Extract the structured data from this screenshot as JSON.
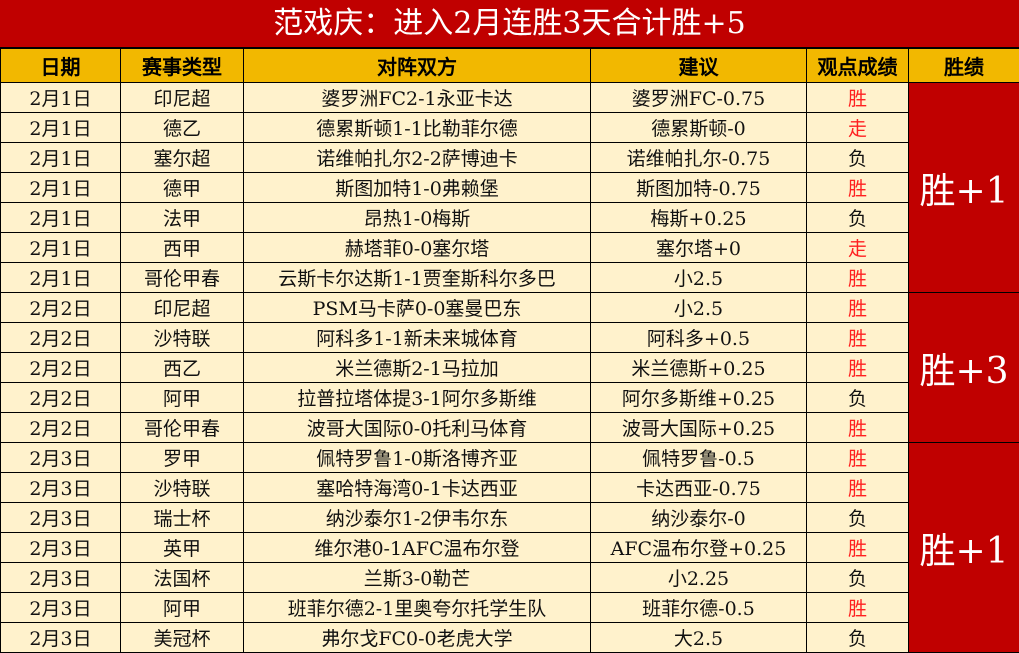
{
  "title": "范戏庆：进入2月连胜3天合计胜+5",
  "headers": [
    "日期",
    "赛事类型",
    "对阵双方",
    "建议",
    "观点成绩",
    "胜绩"
  ],
  "colors": {
    "title_bg": "#c00000",
    "header_bg": "#f2b800",
    "row_bg": "#fff2cc",
    "win_text": "#ff2020",
    "summary_bg": "#c00000"
  },
  "rows": [
    {
      "date": "2月1日",
      "league": "印尼超",
      "match": "婆罗洲FC2-1永亚卡达",
      "tip": "婆罗洲FC-0.75",
      "result": "胜"
    },
    {
      "date": "2月1日",
      "league": "德乙",
      "match": "德累斯顿1-1比勒菲尔德",
      "tip": "德累斯顿-0",
      "result": "走"
    },
    {
      "date": "2月1日",
      "league": "塞尔超",
      "match": "诺维帕扎尔2-2萨博迪卡",
      "tip": "诺维帕扎尔-0.75",
      "result": "负"
    },
    {
      "date": "2月1日",
      "league": "德甲",
      "match": "斯图加特1-0弗赖堡",
      "tip": "斯图加特-0.75",
      "result": "胜"
    },
    {
      "date": "2月1日",
      "league": "法甲",
      "match": "昂热1-0梅斯",
      "tip": "梅斯+0.25",
      "result": "负"
    },
    {
      "date": "2月1日",
      "league": "西甲",
      "match": "赫塔菲0-0塞尔塔",
      "tip": "塞尔塔+0",
      "result": "走"
    },
    {
      "date": "2月1日",
      "league": "哥伦甲春",
      "match": "云斯卡尔达斯1-1贾奎斯科尔多巴",
      "tip": "小2.5",
      "result": "胜"
    },
    {
      "date": "2月2日",
      "league": "印尼超",
      "match": "PSM马卡萨0-0塞曼巴东",
      "tip": "小2.5",
      "result": "胜"
    },
    {
      "date": "2月2日",
      "league": "沙特联",
      "match": "阿科多1-1新未来城体育",
      "tip": "阿科多+0.5",
      "result": "胜"
    },
    {
      "date": "2月2日",
      "league": "西乙",
      "match": "米兰德斯2-1马拉加",
      "tip": "米兰德斯+0.25",
      "result": "胜"
    },
    {
      "date": "2月2日",
      "league": "阿甲",
      "match": "拉普拉塔体提3-1阿尔多斯维",
      "tip": "阿尔多斯维+0.25",
      "result": "负"
    },
    {
      "date": "2月2日",
      "league": "哥伦甲春",
      "match": "波哥大国际0-0托利马体育",
      "tip": "波哥大国际+0.25",
      "result": "胜"
    },
    {
      "date": "2月3日",
      "league": "罗甲",
      "match": "佩特罗鲁1-0斯洛博齐亚",
      "tip": "佩特罗鲁-0.5",
      "result": "胜"
    },
    {
      "date": "2月3日",
      "league": "沙特联",
      "match": "塞哈特海湾0-1卡达西亚",
      "tip": "卡达西亚-0.75",
      "result": "胜"
    },
    {
      "date": "2月3日",
      "league": "瑞士杯",
      "match": "纳沙泰尔1-2伊韦尔东",
      "tip": "纳沙泰尔-0",
      "result": "负"
    },
    {
      "date": "2月3日",
      "league": "英甲",
      "match": "维尔港0-1AFC温布尔登",
      "tip": "AFC温布尔登+0.25",
      "result": "胜"
    },
    {
      "date": "2月3日",
      "league": "法国杯",
      "match": "兰斯3-0勒芒",
      "tip": "小2.25",
      "result": "负"
    },
    {
      "date": "2月3日",
      "league": "阿甲",
      "match": "班菲尔德2-1里奥夸尔托学生队",
      "tip": "班菲尔德-0.5",
      "result": "胜"
    },
    {
      "date": "2月3日",
      "league": "美冠杯",
      "match": "弗尔戈FC0-0老虎大学",
      "tip": "大2.5",
      "result": "负"
    }
  ],
  "summaries": [
    {
      "label": "胜+1",
      "rows": 7
    },
    {
      "label": "胜+3",
      "rows": 5
    },
    {
      "label": "胜+1",
      "rows": 7
    }
  ]
}
